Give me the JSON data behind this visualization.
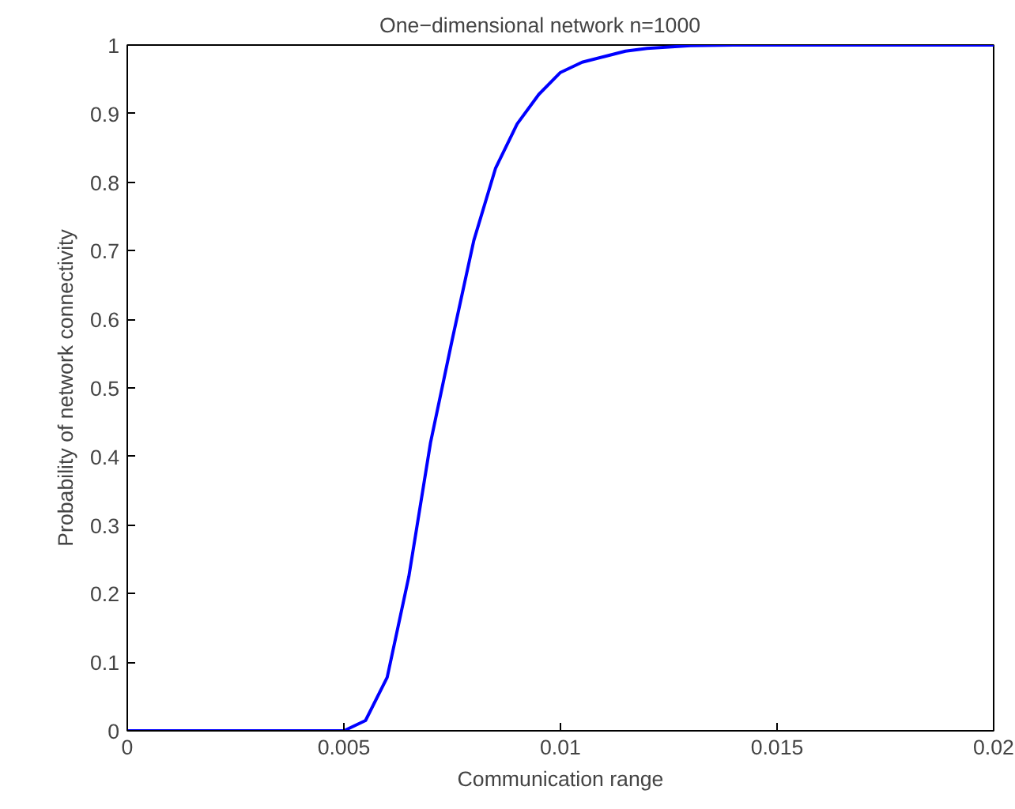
{
  "chart_data": {
    "type": "line",
    "title": "One−dimensional network        n=1000",
    "xlabel": "Communication range",
    "ylabel": "Probability of network connectivity",
    "x": [
      0,
      0.001,
      0.002,
      0.003,
      0.004,
      0.005,
      0.0055,
      0.006,
      0.0065,
      0.007,
      0.0075,
      0.008,
      0.0085,
      0.009,
      0.0095,
      0.01,
      0.0105,
      0.011,
      0.0115,
      0.012,
      0.013,
      0.014,
      0.015,
      0.016,
      0.017,
      0.018,
      0.019,
      0.02
    ],
    "series": [
      {
        "color": "#0000ff",
        "values": [
          0,
          0,
          0,
          0,
          0,
          0,
          0.015,
          0.078,
          0.225,
          0.42,
          0.57,
          0.715,
          0.82,
          0.885,
          0.928,
          0.96,
          0.975,
          0.983,
          0.991,
          0.995,
          0.999,
          1,
          1,
          1,
          1,
          1,
          1,
          1
        ]
      }
    ],
    "xlim": [
      0,
      0.02
    ],
    "ylim": [
      0,
      1
    ],
    "xticks": [
      0,
      0.005,
      0.01,
      0.015,
      0.02
    ],
    "yticks": [
      0,
      0.1,
      0.2,
      0.3,
      0.4,
      0.5,
      0.6,
      0.7,
      0.8,
      0.9,
      1
    ],
    "grid": false,
    "marker": "none",
    "line_style": "solid"
  }
}
